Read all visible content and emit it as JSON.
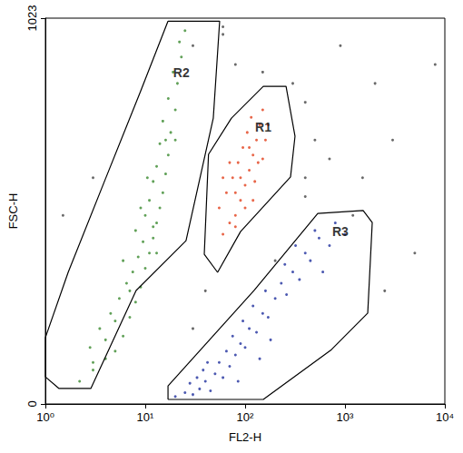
{
  "chart_data": {
    "type": "scatter",
    "x_label": "FL2-H",
    "y_label": "FSC-H",
    "log": "x",
    "xlim": [
      1,
      10000
    ],
    "xticks": [
      {
        "value": 1,
        "label": "10⁰"
      },
      {
        "value": 10,
        "label": "10¹"
      },
      {
        "value": 100,
        "label": "10²"
      },
      {
        "value": 1000,
        "label": "10³"
      },
      {
        "value": 10000,
        "label": "10⁴"
      }
    ],
    "ylim": [
      0,
      1023
    ],
    "yticks": [
      0,
      1023
    ],
    "gates": [
      {
        "label": "R2",
        "label_at": [
          23,
          878
        ],
        "vertices": [
          [
            16.9,
            1015
          ],
          [
            55.6,
            1015
          ],
          [
            48,
            758
          ],
          [
            25.6,
            433
          ],
          [
            8.1,
            301
          ],
          [
            2.85,
            41
          ],
          [
            1.37,
            41
          ],
          [
            1.0,
            72
          ],
          [
            1.0,
            176
          ],
          [
            1.69,
            349
          ],
          [
            3.9,
            590
          ],
          [
            9.0,
            830
          ]
        ]
      },
      {
        "label": "R1",
        "label_at": [
          152,
          734
        ],
        "vertices": [
          [
            73,
            758
          ],
          [
            152,
            842
          ],
          [
            257,
            842
          ],
          [
            316,
            710
          ],
          [
            285,
            602
          ],
          [
            90,
            457
          ],
          [
            53,
            349
          ],
          [
            39,
            397
          ],
          [
            43,
            662
          ]
        ]
      },
      {
        "label": "R3",
        "label_at": [
          900,
          457
        ],
        "vertices": [
          [
            16.9,
            12
          ],
          [
            16.9,
            48
          ],
          [
            123,
            301
          ],
          [
            534,
            505
          ],
          [
            1520,
            513
          ],
          [
            1875,
            481
          ],
          [
            1690,
            241
          ],
          [
            731,
            144
          ],
          [
            152,
            12
          ]
        ]
      }
    ],
    "series": [
      {
        "name": "R2",
        "color": "#3a8a2e",
        "marker": "dot",
        "values": [
          [
            2.2,
            60
          ],
          [
            3,
            90
          ],
          [
            4,
            120
          ],
          [
            2.8,
            150
          ],
          [
            5,
            140
          ],
          [
            3.5,
            200
          ],
          [
            6,
            180
          ],
          [
            4.5,
            240
          ],
          [
            7,
            230
          ],
          [
            5.5,
            280
          ],
          [
            8,
            270
          ],
          [
            6.5,
            320
          ],
          [
            9,
            310
          ],
          [
            7.5,
            350
          ],
          [
            10,
            360
          ],
          [
            8.5,
            390
          ],
          [
            11,
            400
          ],
          [
            6,
            380
          ],
          [
            9.5,
            430
          ],
          [
            12,
            440
          ],
          [
            8,
            460
          ],
          [
            13,
            480
          ],
          [
            10,
            500
          ],
          [
            14,
            520
          ],
          [
            11,
            540
          ],
          [
            9,
            520
          ],
          [
            15,
            560
          ],
          [
            12,
            590
          ],
          [
            16,
            610
          ],
          [
            13,
            630
          ],
          [
            10.5,
            600
          ],
          [
            17,
            660
          ],
          [
            14,
            690
          ],
          [
            18,
            720
          ],
          [
            15,
            750
          ],
          [
            20,
            780
          ],
          [
            17,
            810
          ],
          [
            21,
            850
          ],
          [
            19,
            880
          ],
          [
            23,
            920
          ],
          [
            22,
            960
          ],
          [
            25,
            990
          ],
          [
            16,
            700
          ],
          [
            7,
            300
          ],
          [
            5,
            220
          ],
          [
            12,
            470
          ],
          [
            13,
            400
          ],
          [
            4,
            170
          ],
          [
            3,
            110
          ],
          [
            20,
            700
          ]
        ]
      },
      {
        "name": "R1",
        "color": "#e2401c",
        "marker": "dot",
        "values": [
          [
            60,
            450
          ],
          [
            70,
            480
          ],
          [
            55,
            520
          ],
          [
            80,
            500
          ],
          [
            90,
            540
          ],
          [
            65,
            560
          ],
          [
            100,
            580
          ],
          [
            75,
            600
          ],
          [
            110,
            620
          ],
          [
            85,
            640
          ],
          [
            120,
            660
          ],
          [
            95,
            680
          ],
          [
            130,
            700
          ],
          [
            105,
            720
          ],
          [
            140,
            740
          ],
          [
            115,
            760
          ],
          [
            150,
            780
          ],
          [
            90,
            600
          ],
          [
            100,
            520
          ],
          [
            125,
            590
          ],
          [
            70,
            640
          ],
          [
            160,
            700
          ],
          [
            80,
            560
          ],
          [
            110,
            680
          ],
          [
            80,
            470
          ],
          [
            135,
            640
          ],
          [
            60,
            600
          ],
          [
            150,
            650
          ],
          [
            120,
            540
          ],
          [
            170,
            740
          ]
        ]
      },
      {
        "name": "R3",
        "color": "#1f2f9e",
        "marker": "dot",
        "values": [
          [
            20,
            20
          ],
          [
            25,
            30
          ],
          [
            30,
            25
          ],
          [
            35,
            40
          ],
          [
            28,
            55
          ],
          [
            40,
            60
          ],
          [
            45,
            35
          ],
          [
            50,
            80
          ],
          [
            38,
            90
          ],
          [
            60,
            70
          ],
          [
            55,
            110
          ],
          [
            70,
            100
          ],
          [
            65,
            140
          ],
          [
            80,
            130
          ],
          [
            90,
            160
          ],
          [
            75,
            180
          ],
          [
            100,
            150
          ],
          [
            110,
            200
          ],
          [
            95,
            220
          ],
          [
            130,
            190
          ],
          [
            150,
            240
          ],
          [
            120,
            260
          ],
          [
            170,
            230
          ],
          [
            200,
            280
          ],
          [
            160,
            300
          ],
          [
            230,
            320
          ],
          [
            260,
            290
          ],
          [
            300,
            350
          ],
          [
            250,
            370
          ],
          [
            350,
            330
          ],
          [
            400,
            400
          ],
          [
            320,
            420
          ],
          [
            450,
            380
          ],
          [
            550,
            440
          ],
          [
            500,
            460
          ],
          [
            700,
            420
          ],
          [
            800,
            480
          ],
          [
            1000,
            450
          ],
          [
            600,
            350
          ],
          [
            42,
            110
          ],
          [
            33,
            70
          ],
          [
            85,
            60
          ],
          [
            140,
            120
          ],
          [
            180,
            170
          ]
        ]
      },
      {
        "color": "#444444",
        "marker": "dot",
        "values": [
          [
            30,
            950
          ],
          [
            60,
            980
          ],
          [
            80,
            900
          ],
          [
            150,
            880
          ],
          [
            300,
            850
          ],
          [
            500,
            700
          ],
          [
            400,
            800
          ],
          [
            700,
            650
          ],
          [
            1500,
            600
          ],
          [
            3000,
            700
          ],
          [
            2000,
            850
          ],
          [
            1200,
            500
          ],
          [
            5000,
            400
          ],
          [
            400,
            600
          ],
          [
            200,
            380
          ],
          [
            40,
            300
          ],
          [
            30,
            200
          ],
          [
            3,
            600
          ],
          [
            1.5,
            500
          ],
          [
            8000,
            900
          ],
          [
            900,
            950
          ],
          [
            60,
            1000
          ],
          [
            400,
            550
          ],
          [
            2500,
            300
          ]
        ]
      }
    ]
  }
}
